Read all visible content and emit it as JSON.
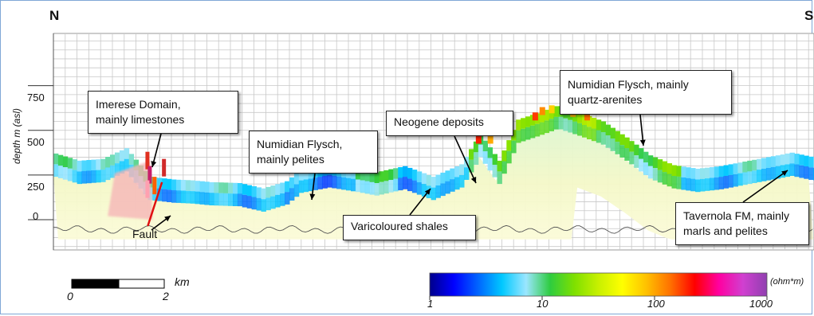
{
  "orientation": {
    "left": "N",
    "right": "S"
  },
  "chart_data": {
    "type": "heatmap",
    "ylabel": "depth m (asl)",
    "yticks": [
      0,
      250,
      500,
      750
    ],
    "ylim": [
      -150,
      1050
    ],
    "colorbar": {
      "unit": "(ohm*m)",
      "scale": "log",
      "ticks": [
        1,
        10,
        100,
        1000
      ],
      "range": [
        1,
        1000
      ],
      "colors": [
        "#00008b",
        "#0000ff",
        "#0064ff",
        "#00c8ff",
        "#9be6ff",
        "#2ecc40",
        "#7fe000",
        "#c8f000",
        "#ffff00",
        "#ffc000",
        "#ff7000",
        "#ff0000",
        "#ff00a0",
        "#d040d0",
        "#9040b0"
      ]
    },
    "profile_top_elevation_m": {
      "x_km": [
        0,
        1.0,
        2.0,
        3.0,
        4.0,
        5.0,
        5.8,
        6.6,
        7.8,
        8.8,
        9.8,
        10.4,
        11.6,
        12.8,
        13.6,
        14.8,
        16.0,
        17.2,
        18.0,
        18.8,
        19.6,
        20.5,
        21.3,
        22.2,
        23.2,
        24.2,
        25.2,
        26.2,
        27.2,
        28.2,
        29.2,
        30.2,
        31.2,
        32.1
      ],
      "elevation_m": [
        370,
        330,
        340,
        400,
        240,
        225,
        220,
        210,
        205,
        175,
        215,
        280,
        310,
        285,
        265,
        300,
        240,
        310,
        480,
        330,
        560,
        600,
        640,
        600,
        550,
        460,
        360,
        305,
        285,
        300,
        325,
        350,
        375,
        350
      ]
    },
    "scale_bar": {
      "unit": "km",
      "labels": [
        "0",
        "2"
      ]
    }
  },
  "annotations": [
    {
      "name": "imerese",
      "lines": [
        "Imerese Domain,",
        "mainly limestones"
      ]
    },
    {
      "name": "fault",
      "lines": [
        "Fault"
      ]
    },
    {
      "name": "numidian-pelites",
      "lines": [
        "Numidian Flysch,",
        "mainly pelites"
      ]
    },
    {
      "name": "varicoloured",
      "lines": [
        "Varicoloured shales"
      ]
    },
    {
      "name": "neogene",
      "lines": [
        "Neogene deposits"
      ]
    },
    {
      "name": "numidian-arenites",
      "lines": [
        "Numidian Flysch, mainly",
        "quartz-arenites"
      ]
    },
    {
      "name": "tavernola",
      "lines": [
        "Tavernola FM, mainly",
        "marls and pelites"
      ]
    }
  ]
}
